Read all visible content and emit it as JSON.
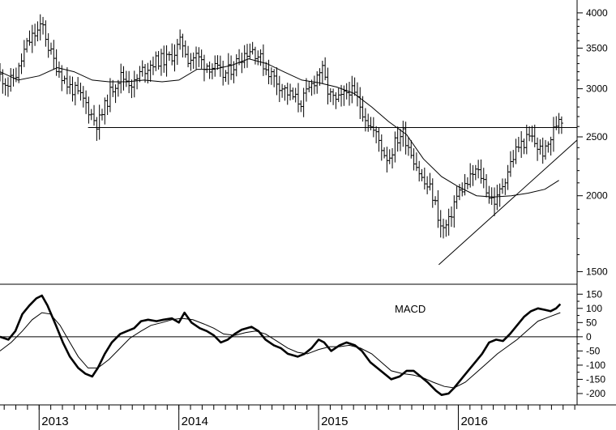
{
  "chart_data": [
    {
      "type": "ohlc",
      "panel": "price",
      "scale": "log",
      "ylim": [
        1430,
        4200
      ],
      "yticks": [
        1500,
        2000,
        2500,
        3000,
        3500,
        4000
      ],
      "ytick_labels": [
        "1500",
        "2000",
        "2500",
        "3000",
        "3500",
        "4000"
      ],
      "xlim": [
        2012.72,
        2016.85
      ],
      "xlabels": [
        {
          "x": 2013.0,
          "label": "2013"
        },
        {
          "x": 2014.0,
          "label": "2014"
        },
        {
          "x": 2015.0,
          "label": "2015"
        },
        {
          "x": 2016.0,
          "label": "2016"
        }
      ],
      "close_points": [
        [
          2012.72,
          3150
        ],
        [
          2012.78,
          3050
        ],
        [
          2012.85,
          3200
        ],
        [
          2012.9,
          3500
        ],
        [
          2012.95,
          3650
        ],
        [
          2013.0,
          3750
        ],
        [
          2013.03,
          3800
        ],
        [
          2013.06,
          3550
        ],
        [
          2013.1,
          3350
        ],
        [
          2013.15,
          3200
        ],
        [
          2013.2,
          3050
        ],
        [
          2013.27,
          2950
        ],
        [
          2013.33,
          2850
        ],
        [
          2013.38,
          2700
        ],
        [
          2013.42,
          2620
        ],
        [
          2013.47,
          2800
        ],
        [
          2013.52,
          3000
        ],
        [
          2013.58,
          3150
        ],
        [
          2013.63,
          3100
        ],
        [
          2013.68,
          3050
        ],
        [
          2013.73,
          3200
        ],
        [
          2013.8,
          3300
        ],
        [
          2013.86,
          3350
        ],
        [
          2013.92,
          3350
        ],
        [
          2013.97,
          3450
        ],
        [
          2014.02,
          3600
        ],
        [
          2014.07,
          3350
        ],
        [
          2014.12,
          3400
        ],
        [
          2014.18,
          3300
        ],
        [
          2014.25,
          3250
        ],
        [
          2014.32,
          3150
        ],
        [
          2014.38,
          3250
        ],
        [
          2014.45,
          3400
        ],
        [
          2014.52,
          3500
        ],
        [
          2014.57,
          3400
        ],
        [
          2014.62,
          3250
        ],
        [
          2014.67,
          3150
        ],
        [
          2014.72,
          3050
        ],
        [
          2014.78,
          2950
        ],
        [
          2014.82,
          2900
        ],
        [
          2014.87,
          2850
        ],
        [
          2014.92,
          2950
        ],
        [
          2014.97,
          3100
        ],
        [
          2015.02,
          3250
        ],
        [
          2015.07,
          2950
        ],
        [
          2015.12,
          2850
        ],
        [
          2015.17,
          2900
        ],
        [
          2015.22,
          3000
        ],
        [
          2015.27,
          2900
        ],
        [
          2015.32,
          2750
        ],
        [
          2015.37,
          2600
        ],
        [
          2015.42,
          2500
        ],
        [
          2015.47,
          2350
        ],
        [
          2015.5,
          2300
        ],
        [
          2015.55,
          2450
        ],
        [
          2015.6,
          2550
        ],
        [
          2015.65,
          2400
        ],
        [
          2015.7,
          2250
        ],
        [
          2015.75,
          2100
        ],
        [
          2015.8,
          2050
        ],
        [
          2015.84,
          1920
        ],
        [
          2015.88,
          1750
        ],
        [
          2015.93,
          1800
        ],
        [
          2015.97,
          1950
        ],
        [
          2016.02,
          2050
        ],
        [
          2016.07,
          2100
        ],
        [
          2016.12,
          2200
        ],
        [
          2016.17,
          2150
        ],
        [
          2016.22,
          2000
        ],
        [
          2016.27,
          1950
        ],
        [
          2016.32,
          2100
        ],
        [
          2016.37,
          2250
        ],
        [
          2016.42,
          2400
        ],
        [
          2016.47,
          2450
        ],
        [
          2016.52,
          2500
        ],
        [
          2016.57,
          2400
        ],
        [
          2016.62,
          2350
        ],
        [
          2016.65,
          2450
        ],
        [
          2016.68,
          2550
        ],
        [
          2016.72,
          2700
        ],
        [
          2016.74,
          2680
        ]
      ],
      "moving_average": [
        [
          2012.72,
          3200
        ],
        [
          2012.85,
          3100
        ],
        [
          2013.0,
          3150
        ],
        [
          2013.13,
          3250
        ],
        [
          2013.25,
          3200
        ],
        [
          2013.38,
          3100
        ],
        [
          2013.5,
          3080
        ],
        [
          2013.63,
          3080
        ],
        [
          2013.75,
          3100
        ],
        [
          2013.88,
          3080
        ],
        [
          2014.0,
          3100
        ],
        [
          2014.13,
          3230
        ],
        [
          2014.25,
          3230
        ],
        [
          2014.38,
          3280
        ],
        [
          2014.5,
          3360
        ],
        [
          2014.63,
          3300
        ],
        [
          2014.75,
          3200
        ],
        [
          2014.88,
          3100
        ],
        [
          2015.0,
          3070
        ],
        [
          2015.13,
          3020
        ],
        [
          2015.25,
          2950
        ],
        [
          2015.38,
          2800
        ],
        [
          2015.5,
          2650
        ],
        [
          2015.63,
          2520
        ],
        [
          2015.75,
          2300
        ],
        [
          2015.88,
          2150
        ],
        [
          2016.0,
          2070
        ],
        [
          2016.13,
          2000
        ],
        [
          2016.25,
          1990
        ],
        [
          2016.38,
          2000
        ],
        [
          2016.5,
          2020
        ],
        [
          2016.62,
          2050
        ],
        [
          2016.72,
          2120
        ]
      ],
      "support_line": {
        "from": [
          2013.35,
          2590
        ],
        "to": [
          2016.85,
          2590
        ]
      },
      "trend_line": {
        "from": [
          2015.86,
          1540
        ],
        "to": [
          2016.85,
          2470
        ]
      }
    },
    {
      "type": "line",
      "panel": "macd",
      "title": "MACD",
      "ylim": [
        -240,
        185
      ],
      "yticks": [
        150,
        100,
        50,
        0,
        -50,
        -100,
        -150,
        -200
      ],
      "ytick_labels": [
        "150",
        "100",
        "50",
        "0",
        "-50",
        "-100",
        "-150",
        "-200"
      ],
      "zero_line": 0,
      "series": [
        {
          "role": "macd",
          "points": [
            [
              2012.72,
              0
            ],
            [
              2012.78,
              -10
            ],
            [
              2012.83,
              20
            ],
            [
              2012.88,
              80
            ],
            [
              2012.93,
              110
            ],
            [
              2012.98,
              135
            ],
            [
              2013.02,
              145
            ],
            [
              2013.06,
              110
            ],
            [
              2013.12,
              40
            ],
            [
              2013.17,
              -20
            ],
            [
              2013.22,
              -70
            ],
            [
              2013.28,
              -110
            ],
            [
              2013.33,
              -130
            ],
            [
              2013.38,
              -140
            ],
            [
              2013.42,
              -110
            ],
            [
              2013.47,
              -60
            ],
            [
              2013.52,
              -20
            ],
            [
              2013.58,
              10
            ],
            [
              2013.63,
              20
            ],
            [
              2013.68,
              30
            ],
            [
              2013.73,
              55
            ],
            [
              2013.78,
              60
            ],
            [
              2013.84,
              55
            ],
            [
              2013.89,
              60
            ],
            [
              2013.95,
              65
            ],
            [
              2014.0,
              50
            ],
            [
              2014.04,
              85
            ],
            [
              2014.09,
              50
            ],
            [
              2014.15,
              30
            ],
            [
              2014.2,
              20
            ],
            [
              2014.25,
              5
            ],
            [
              2014.3,
              -20
            ],
            [
              2014.35,
              -10
            ],
            [
              2014.4,
              10
            ],
            [
              2014.45,
              25
            ],
            [
              2014.52,
              35
            ],
            [
              2014.57,
              20
            ],
            [
              2014.62,
              -10
            ],
            [
              2014.68,
              -30
            ],
            [
              2014.73,
              -40
            ],
            [
              2014.78,
              -60
            ],
            [
              2014.85,
              -70
            ],
            [
              2014.9,
              -60
            ],
            [
              2014.95,
              -40
            ],
            [
              2015.0,
              -10
            ],
            [
              2015.04,
              -20
            ],
            [
              2015.09,
              -50
            ],
            [
              2015.15,
              -30
            ],
            [
              2015.2,
              -20
            ],
            [
              2015.26,
              -30
            ],
            [
              2015.31,
              -50
            ],
            [
              2015.37,
              -90
            ],
            [
              2015.42,
              -110
            ],
            [
              2015.47,
              -130
            ],
            [
              2015.52,
              -150
            ],
            [
              2015.58,
              -140
            ],
            [
              2015.63,
              -120
            ],
            [
              2015.68,
              -120
            ],
            [
              2015.73,
              -140
            ],
            [
              2015.78,
              -160
            ],
            [
              2015.84,
              -190
            ],
            [
              2015.88,
              -205
            ],
            [
              2015.93,
              -200
            ],
            [
              2015.97,
              -180
            ],
            [
              2016.02,
              -150
            ],
            [
              2016.07,
              -120
            ],
            [
              2016.12,
              -90
            ],
            [
              2016.17,
              -60
            ],
            [
              2016.22,
              -20
            ],
            [
              2016.27,
              -10
            ],
            [
              2016.32,
              -15
            ],
            [
              2016.37,
              10
            ],
            [
              2016.42,
              40
            ],
            [
              2016.47,
              70
            ],
            [
              2016.52,
              90
            ],
            [
              2016.57,
              100
            ],
            [
              2016.62,
              95
            ],
            [
              2016.66,
              90
            ],
            [
              2016.7,
              100
            ],
            [
              2016.73,
              115
            ]
          ]
        },
        {
          "role": "signal",
          "points": [
            [
              2012.72,
              -50
            ],
            [
              2012.8,
              -20
            ],
            [
              2012.88,
              20
            ],
            [
              2012.95,
              60
            ],
            [
              2013.02,
              85
            ],
            [
              2013.08,
              80
            ],
            [
              2013.15,
              40
            ],
            [
              2013.22,
              -20
            ],
            [
              2013.28,
              -70
            ],
            [
              2013.35,
              -110
            ],
            [
              2013.42,
              -110
            ],
            [
              2013.5,
              -80
            ],
            [
              2013.58,
              -40
            ],
            [
              2013.65,
              -5
            ],
            [
              2013.73,
              20
            ],
            [
              2013.8,
              40
            ],
            [
              2013.88,
              50
            ],
            [
              2013.95,
              60
            ],
            [
              2014.02,
              65
            ],
            [
              2014.1,
              60
            ],
            [
              2014.18,
              45
            ],
            [
              2014.25,
              30
            ],
            [
              2014.32,
              10
            ],
            [
              2014.4,
              5
            ],
            [
              2014.48,
              15
            ],
            [
              2014.55,
              20
            ],
            [
              2014.62,
              10
            ],
            [
              2014.7,
              -15
            ],
            [
              2014.78,
              -40
            ],
            [
              2014.85,
              -55
            ],
            [
              2014.92,
              -60
            ],
            [
              2015.0,
              -45
            ],
            [
              2015.08,
              -35
            ],
            [
              2015.15,
              -35
            ],
            [
              2015.22,
              -30
            ],
            [
              2015.3,
              -40
            ],
            [
              2015.38,
              -60
            ],
            [
              2015.45,
              -90
            ],
            [
              2015.52,
              -120
            ],
            [
              2015.6,
              -130
            ],
            [
              2015.68,
              -135
            ],
            [
              2015.75,
              -145
            ],
            [
              2015.82,
              -160
            ],
            [
              2015.9,
              -175
            ],
            [
              2015.97,
              -180
            ],
            [
              2016.05,
              -160
            ],
            [
              2016.12,
              -130
            ],
            [
              2016.2,
              -95
            ],
            [
              2016.28,
              -60
            ],
            [
              2016.35,
              -35
            ],
            [
              2016.42,
              -10
            ],
            [
              2016.5,
              25
            ],
            [
              2016.57,
              55
            ],
            [
              2016.65,
              70
            ],
            [
              2016.73,
              85
            ]
          ]
        }
      ]
    }
  ]
}
